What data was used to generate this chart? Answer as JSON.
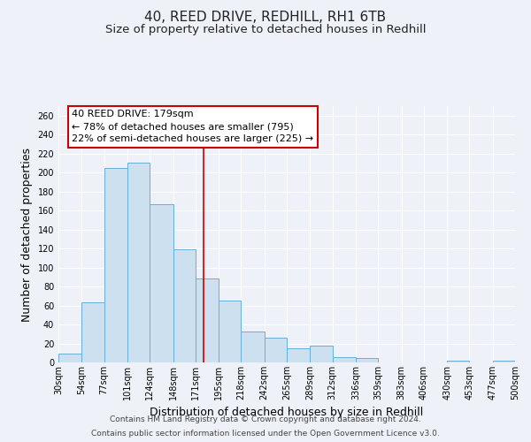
{
  "title": "40, REED DRIVE, REDHILL, RH1 6TB",
  "subtitle": "Size of property relative to detached houses in Redhill",
  "xlabel": "Distribution of detached houses by size in Redhill",
  "ylabel": "Number of detached properties",
  "bin_edges": [
    30,
    54,
    77,
    101,
    124,
    148,
    171,
    195,
    218,
    242,
    265,
    289,
    312,
    336,
    359,
    383,
    406,
    430,
    453,
    477,
    500
  ],
  "counts": [
    9,
    63,
    205,
    210,
    167,
    119,
    88,
    65,
    33,
    26,
    15,
    18,
    6,
    5,
    0,
    0,
    0,
    2,
    0,
    2
  ],
  "bar_face_color": "#cce0f0",
  "bar_edge_color": "#6aaed6",
  "red_line_x": 179,
  "annotation_title": "40 REED DRIVE: 179sqm",
  "annotation_line1": "← 78% of detached houses are smaller (795)",
  "annotation_line2": "22% of semi-detached houses are larger (225) →",
  "annotation_box_color": "#ffffff",
  "annotation_box_edge_color": "#cc0000",
  "red_line_color": "#cc0000",
  "ylim": [
    0,
    270
  ],
  "yticks": [
    0,
    20,
    40,
    60,
    80,
    100,
    120,
    140,
    160,
    180,
    200,
    220,
    240,
    260
  ],
  "tick_labels": [
    "30sqm",
    "54sqm",
    "77sqm",
    "101sqm",
    "124sqm",
    "148sqm",
    "171sqm",
    "195sqm",
    "218sqm",
    "242sqm",
    "265sqm",
    "289sqm",
    "312sqm",
    "336sqm",
    "359sqm",
    "383sqm",
    "406sqm",
    "430sqm",
    "453sqm",
    "477sqm",
    "500sqm"
  ],
  "footer_line1": "Contains HM Land Registry data © Crown copyright and database right 2024.",
  "footer_line2": "Contains public sector information licensed under the Open Government Licence v3.0.",
  "bg_color": "#eef2f8",
  "grid_color": "#ffffff",
  "title_fontsize": 11,
  "subtitle_fontsize": 9.5,
  "axis_label_fontsize": 9,
  "tick_fontsize": 7,
  "footer_fontsize": 6.5,
  "annotation_fontsize": 8
}
